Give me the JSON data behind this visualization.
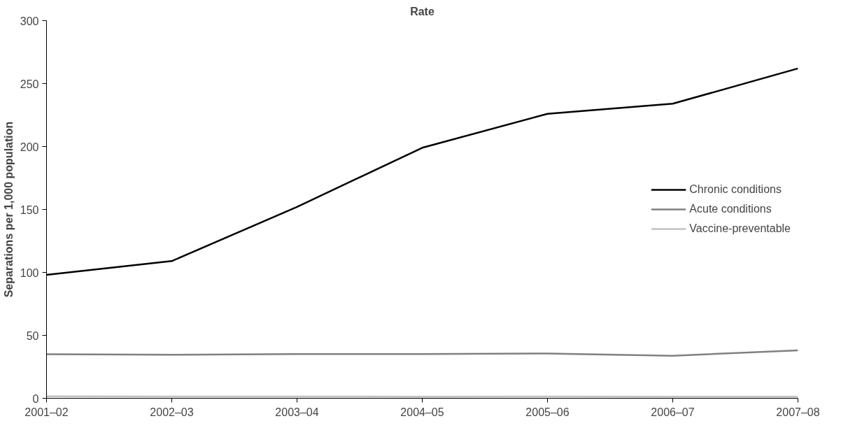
{
  "chart_data": {
    "type": "line",
    "title": "Rate",
    "ylabel": "Separations per 1,000 population",
    "categories": [
      "2001–02",
      "2002–03",
      "2003–04",
      "2004–05",
      "2005–06",
      "2006–07",
      "2007–08"
    ],
    "series": [
      {
        "name": "Chronic conditions",
        "color": "#000000",
        "values": [
          98,
          109,
          152,
          199,
          226,
          234,
          262
        ]
      },
      {
        "name": "Acute conditions",
        "color": "#808080",
        "values": [
          35,
          34.6,
          35.1,
          35.2,
          35.6,
          33.8,
          38
        ]
      },
      {
        "name": "Vaccine-preventable",
        "color": "#c0c0c0",
        "values": [
          1.5,
          1.4,
          1.4,
          1.3,
          1.4,
          1.3,
          1.3
        ]
      }
    ],
    "ylim": [
      0,
      300
    ],
    "yticks": [
      0,
      50,
      100,
      150,
      200,
      250,
      300
    ],
    "grid": false,
    "legend": "right",
    "marker": "none",
    "line_style": "solid"
  }
}
